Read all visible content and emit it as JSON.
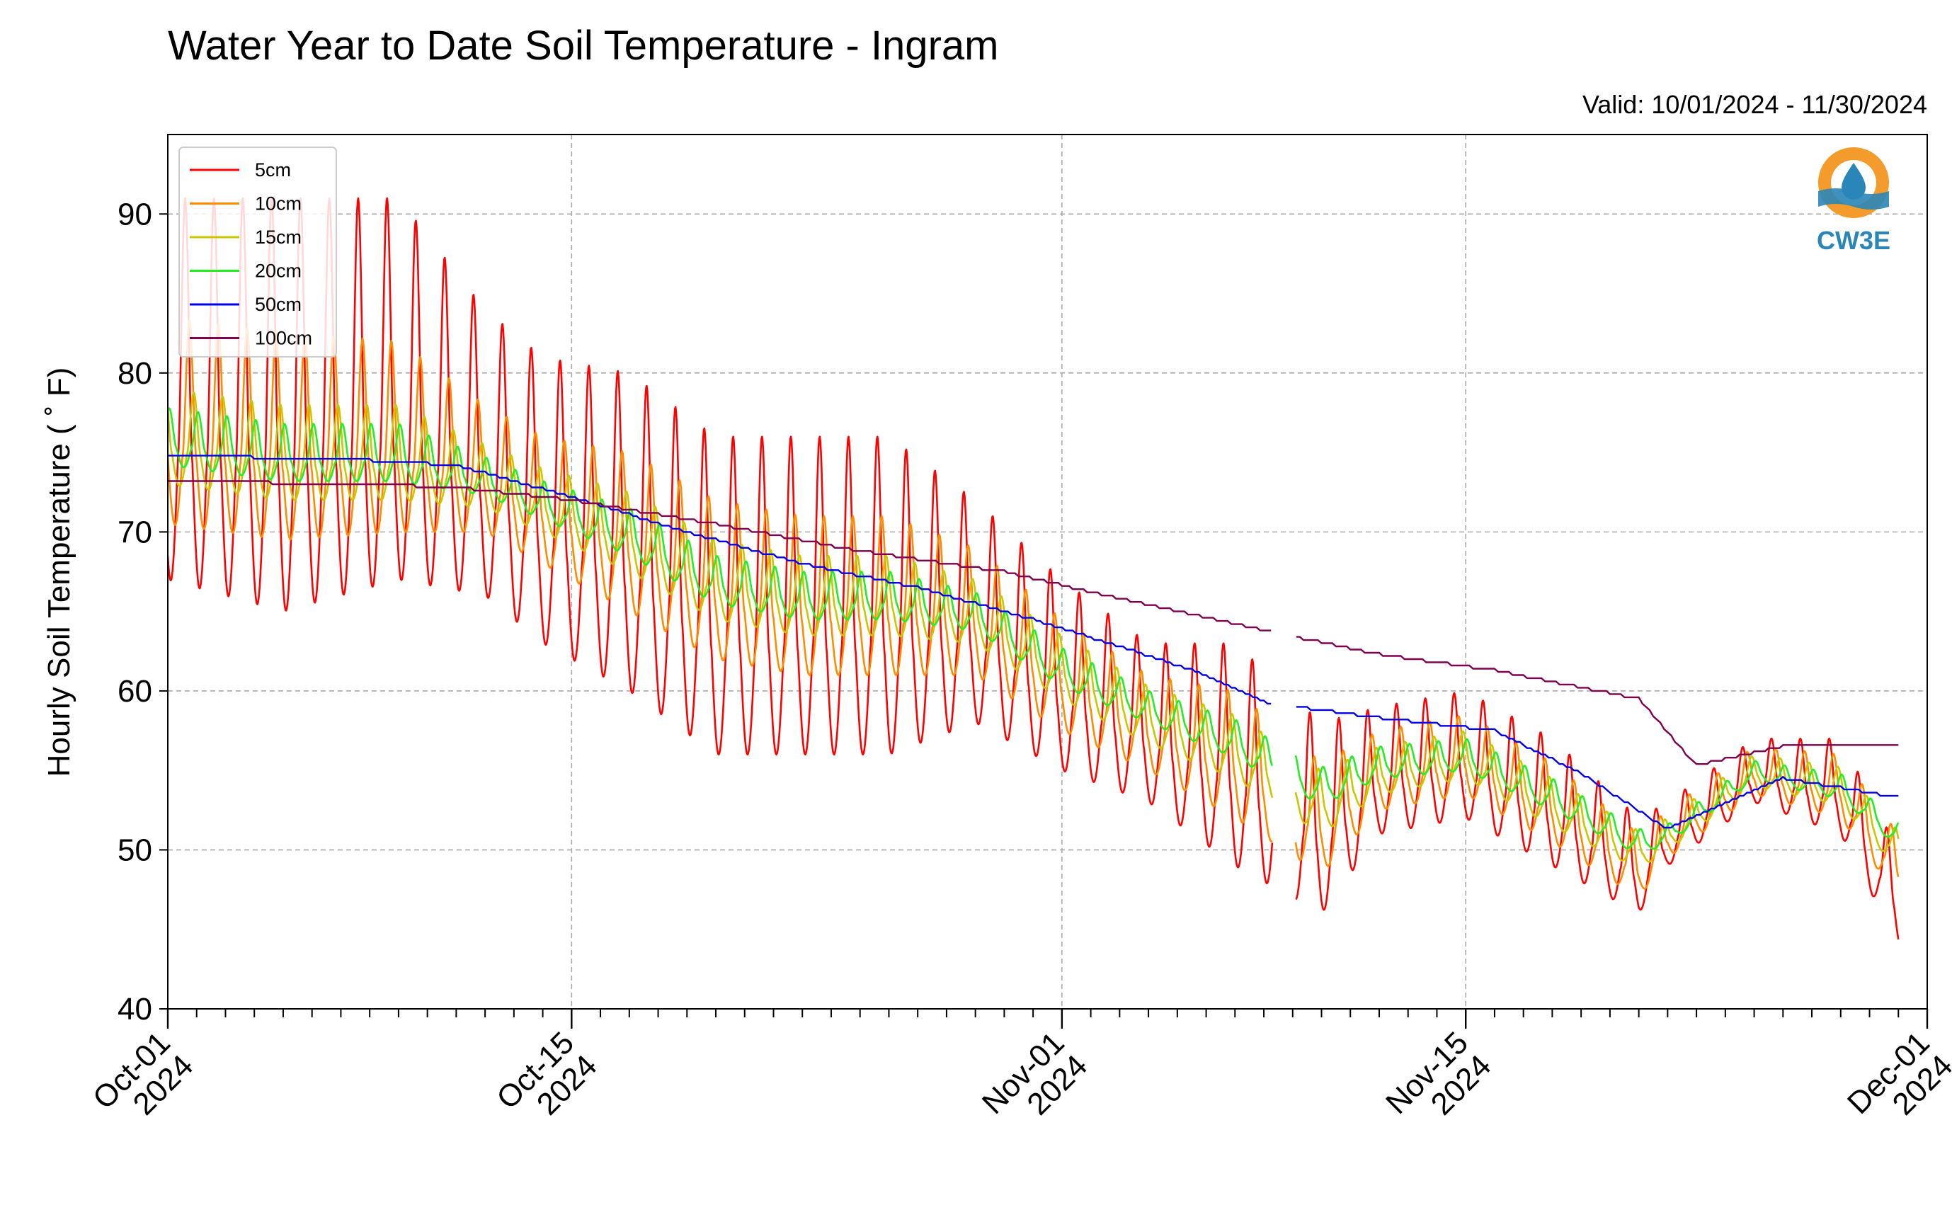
{
  "chart_data": {
    "type": "line",
    "title": "Water Year to Date Soil Temperature - Ingram",
    "subtitle": "Valid: 10/01/2024 - 11/30/2024",
    "xlabel": "",
    "ylabel": "Hourly Soil Temperature ( ˚ F)",
    "ylim": [
      40,
      95
    ],
    "yticks": [
      40,
      50,
      60,
      70,
      80,
      90
    ],
    "xlim": [
      "2024-10-01",
      "2024-12-01"
    ],
    "xticks": [
      {
        "date": "2024-10-01",
        "line1": "Oct-01",
        "line2": "2024"
      },
      {
        "date": "2024-10-15",
        "line1": "Oct-15",
        "line2": "2024"
      },
      {
        "date": "2024-11-01",
        "line1": "Nov-01",
        "line2": "2024"
      },
      {
        "date": "2024-11-15",
        "line1": "Nov-15",
        "line2": "2024"
      },
      {
        "date": "2024-12-01",
        "line1": "Dec-01",
        "line2": "2024"
      }
    ],
    "grid": true,
    "legend_position": "top-left",
    "logo_text": "CW3E",
    "series": [
      {
        "name": "5cm",
        "color": "#ff0000",
        "x": [
          "2024-10-01",
          "2024-10-05",
          "2024-10-09",
          "2024-10-12",
          "2024-10-14",
          "2024-10-17",
          "2024-10-20",
          "2024-10-23",
          "2024-10-26",
          "2024-10-29",
          "2024-11-01",
          "2024-11-04",
          "2024-11-07",
          "2024-11-10",
          "2024-11-12",
          "2024-11-15",
          "2024-11-18",
          "2024-11-21",
          "2024-11-22",
          "2024-11-25",
          "2024-11-28",
          "2024-11-30"
        ],
        "mean": [
          79,
          78,
          79,
          75,
          72,
          70,
          66,
          66,
          66,
          65,
          61,
          58,
          56,
          52,
          55,
          56,
          53,
          49,
          51,
          55,
          54,
          47
        ],
        "amp": [
          12,
          13,
          12,
          9,
          9,
          10,
          10,
          10,
          10,
          7,
          6,
          5,
          7,
          6,
          4,
          4,
          4,
          3,
          2,
          2,
          3,
          3
        ]
      },
      {
        "name": "10cm",
        "color": "#ff8c00",
        "x": [
          "2024-10-01",
          "2024-10-05",
          "2024-10-09",
          "2024-10-12",
          "2024-10-14",
          "2024-10-17",
          "2024-10-20",
          "2024-10-23",
          "2024-10-26",
          "2024-10-29",
          "2024-11-01",
          "2024-11-04",
          "2024-11-07",
          "2024-11-10",
          "2024-11-12",
          "2024-11-15",
          "2024-11-18",
          "2024-11-21",
          "2024-11-22",
          "2024-11-25",
          "2024-11-28",
          "2024-11-30"
        ],
        "mean": [
          77,
          76,
          76,
          74,
          72,
          70,
          67,
          66,
          66,
          65,
          61,
          58,
          56,
          52,
          55,
          56,
          53,
          49,
          51,
          55,
          54,
          49
        ],
        "amp": [
          6.5,
          6.5,
          6,
          4,
          4,
          5,
          5,
          5,
          5,
          4,
          3.5,
          3,
          4,
          3.5,
          2.5,
          2.5,
          2.5,
          2,
          1.5,
          1.5,
          2,
          2
        ]
      },
      {
        "name": "15cm",
        "color": "#c8c800",
        "x": [
          "2024-10-01",
          "2024-10-05",
          "2024-10-09",
          "2024-10-12",
          "2024-10-14",
          "2024-10-17",
          "2024-10-20",
          "2024-10-23",
          "2024-10-26",
          "2024-10-29",
          "2024-11-01",
          "2024-11-04",
          "2024-11-07",
          "2024-11-10",
          "2024-11-12",
          "2024-11-15",
          "2024-11-18",
          "2024-11-21",
          "2024-11-22",
          "2024-11-25",
          "2024-11-28",
          "2024-11-30"
        ],
        "mean": [
          76,
          75,
          75,
          73.5,
          72,
          70,
          67,
          66,
          66,
          65,
          61.5,
          58.5,
          56.5,
          53,
          55,
          56,
          53,
          50,
          51,
          55,
          54,
          50
        ],
        "amp": [
          3,
          3,
          3,
          2,
          2,
          2.5,
          2.5,
          2.5,
          2.5,
          2,
          2,
          1.8,
          2,
          2,
          1.5,
          1.5,
          1.5,
          1.2,
          1,
          1,
          1.2,
          1.2
        ]
      },
      {
        "name": "20cm",
        "color": "#22ee22",
        "x": [
          "2024-10-01",
          "2024-10-05",
          "2024-10-09",
          "2024-10-12",
          "2024-10-14",
          "2024-10-17",
          "2024-10-20",
          "2024-10-23",
          "2024-10-26",
          "2024-10-29",
          "2024-11-01",
          "2024-11-04",
          "2024-11-07",
          "2024-11-10",
          "2024-11-12",
          "2024-11-15",
          "2024-11-18",
          "2024-11-21",
          "2024-11-22",
          "2024-11-25",
          "2024-11-28",
          "2024-11-30"
        ],
        "mean": [
          76,
          75,
          75,
          73.5,
          72,
          70,
          67,
          66,
          66,
          65,
          61.5,
          59,
          57,
          54,
          55.5,
          56,
          53.5,
          50.5,
          51,
          55,
          54,
          51
        ],
        "amp": [
          1.8,
          1.8,
          1.8,
          1.2,
          1.2,
          1.5,
          1.5,
          1.5,
          1.5,
          1.2,
          1.2,
          1,
          1.2,
          1.2,
          1,
          1,
          1,
          0.8,
          0.6,
          0.6,
          0.8,
          0.8
        ]
      },
      {
        "name": "50cm",
        "color": "#0000ee",
        "x": [
          "2024-10-01",
          "2024-10-07",
          "2024-10-11",
          "2024-10-15",
          "2024-10-19",
          "2024-10-23",
          "2024-10-27",
          "2024-10-31",
          "2024-11-03",
          "2024-11-06",
          "2024-11-08",
          "2024-11-12",
          "2024-11-16",
          "2024-11-19",
          "2024-11-22",
          "2024-11-26",
          "2024-11-30"
        ],
        "y": [
          74.8,
          74.6,
          74.2,
          72.2,
          70.0,
          68.0,
          66.5,
          64.5,
          62.8,
          61.0,
          59.3,
          58.3,
          57.5,
          54.8,
          51.3,
          54.5,
          53.3
        ]
      },
      {
        "name": "100cm",
        "color": "#800050",
        "x": [
          "2024-10-01",
          "2024-10-08",
          "2024-10-11",
          "2024-10-15",
          "2024-10-20",
          "2024-10-25",
          "2024-10-30",
          "2024-11-03",
          "2024-11-07",
          "2024-11-12",
          "2024-11-16",
          "2024-11-21",
          "2024-11-23",
          "2024-11-26",
          "2024-11-30"
        ],
        "y": [
          73.2,
          73.0,
          72.8,
          72.0,
          70.5,
          68.8,
          67.5,
          65.8,
          64.2,
          62.3,
          61.3,
          59.5,
          55.3,
          56.5,
          56.5
        ]
      }
    ]
  }
}
